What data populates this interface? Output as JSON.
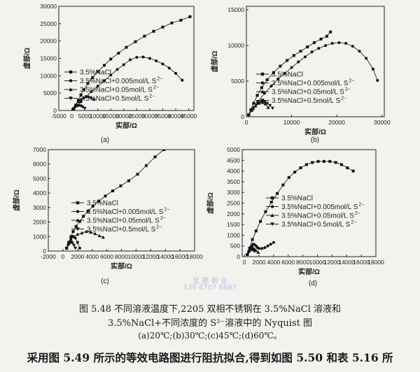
{
  "chart_data": [
    {
      "type": "scatter",
      "panel_label": "(a)",
      "xlabel": "实部/Ω",
      "ylabel": "虚部/Ω",
      "xlim": [
        -5000,
        47000
      ],
      "ylim": [
        0,
        30000
      ],
      "xticks": [
        -5000,
        0,
        5000,
        10000,
        15000,
        20000,
        25000,
        30000,
        35000,
        40000,
        45000
      ],
      "yticks": [
        0,
        5000,
        10000,
        15000,
        20000,
        25000,
        30000
      ],
      "legend": "center-left",
      "series": [
        {
          "name": "3.5%NaCl",
          "marker": "square",
          "legend_name": "3.5%NaCl",
          "x": [
            700,
            1500,
            2500,
            3500,
            4700,
            6200,
            8000,
            10000,
            12500,
            15000,
            18000,
            21000,
            24500,
            28000,
            31500,
            35000,
            38500,
            42000,
            45500
          ],
          "y": [
            500,
            1500,
            3000,
            4500,
            6000,
            7800,
            9500,
            11200,
            13000,
            14800,
            16500,
            18200,
            19800,
            21400,
            22800,
            24000,
            25200,
            26000,
            27000
          ]
        },
        {
          "name": "3.5%NaCl+0.005mol/L S2-",
          "marker": "circle",
          "legend_name": "3.5%NaCl+0.005mol/L S",
          "x": [
            700,
            2000,
            3500,
            5500,
            7500,
            10000,
            12500,
            15000,
            17500,
            20000,
            22500,
            25000,
            27500,
            30000,
            32500,
            35000,
            37500,
            40000,
            42500
          ],
          "y": [
            300,
            1400,
            2500,
            4000,
            5400,
            7000,
            8600,
            10200,
            11800,
            13200,
            14600,
            15300,
            15400,
            15000,
            14300,
            13400,
            12200,
            10700,
            8700
          ]
        },
        {
          "name": "3.5%NaCl+0.05mol/L S2-",
          "marker": "triangle-up",
          "legend_name": "3.5%NaCl+0.05mol/L S",
          "x": [
            600,
            1500,
            2500,
            3500,
            4500,
            5500,
            6500,
            7500,
            8500
          ],
          "y": [
            500,
            1600,
            2500,
            3200,
            3700,
            4000,
            4000,
            3700,
            3200
          ]
        },
        {
          "name": "3.5%NaCl+0.5mol/L S2-",
          "marker": "triangle-down",
          "legend_name": "3.5%NaCl+0.5mol/L S",
          "x": [
            600,
            1200,
            2000,
            2800,
            3500,
            4200,
            5000
          ],
          "y": [
            300,
            800,
            1200,
            1400,
            1300,
            1000,
            600
          ]
        }
      ]
    },
    {
      "type": "scatter",
      "panel_label": "(b)",
      "xlabel": "实部/Ω",
      "ylabel": "虚部/Ω",
      "xlim": [
        0,
        30500
      ],
      "ylim": [
        0,
        15500
      ],
      "xticks": [
        0,
        10000,
        20000,
        30000
      ],
      "yticks": [
        0,
        5000,
        10000,
        15000
      ],
      "legend": "center-left",
      "series": [
        {
          "name": "3.5%NaCl",
          "marker": "square",
          "legend_name": "3.5%NaCl",
          "x": [
            500,
            1000,
            1600,
            2400,
            3400,
            4600,
            6000,
            7500,
            9000,
            10500,
            12000,
            13500,
            15000,
            16500,
            17800,
            18600
          ],
          "y": [
            300,
            1000,
            1900,
            3000,
            4100,
            5200,
            6200,
            7100,
            7900,
            8600,
            9200,
            9800,
            10400,
            10900,
            11300,
            11900
          ]
        },
        {
          "name": "3.5%NaCl+0.005mol/L S2-",
          "marker": "circle",
          "legend_name": "3.5%NaCl+0.005mol/L S",
          "x": [
            500,
            1500,
            2500,
            4000,
            5500,
            7000,
            8500,
            10000,
            11500,
            13000,
            14500,
            16000,
            17500,
            19000,
            20500,
            22000,
            23500,
            25000,
            26500,
            28000,
            29000
          ],
          "y": [
            300,
            1100,
            2100,
            3300,
            4300,
            5300,
            6100,
            6900,
            7700,
            8400,
            9100,
            9600,
            10000,
            10300,
            10400,
            10300,
            9900,
            9200,
            8200,
            6700,
            5100
          ]
        },
        {
          "name": "3.5%NaCl+0.05mol/L S2-",
          "marker": "triangle-up",
          "legend_name": "3.5%NaCl+0.05mol/L S",
          "x": [
            500,
            1200,
            2000,
            2800,
            3600,
            4200,
            4800
          ],
          "y": [
            300,
            900,
            1500,
            1900,
            2000,
            1800,
            1300
          ]
        },
        {
          "name": "3.5%NaCl+0.5mol/L S2-",
          "marker": "triangle-down",
          "legend_name": "3.5%NaCl+0.5mol/L S",
          "x": [
            500,
            1000,
            1600,
            2200,
            2800,
            3400,
            4000,
            4600,
            5200,
            5800
          ],
          "y": [
            200,
            800,
            1300,
            1700,
            2000,
            2100,
            2100,
            1900,
            1600,
            1200
          ]
        }
      ]
    },
    {
      "type": "scatter",
      "panel_label": "(c)",
      "xlabel": "实部/Ω",
      "ylabel": "虚部/Ω",
      "xlim": [
        -2000,
        18000
      ],
      "ylim": [
        0,
        7000
      ],
      "xticks": [
        -2000,
        0,
        2000,
        4000,
        6000,
        8000,
        10000,
        12000,
        14000,
        16000,
        18000
      ],
      "yticks": [
        0,
        1000,
        2000,
        3000,
        4000,
        5000,
        6000,
        7000
      ],
      "legend": "center-left",
      "series": [
        {
          "name": "3.5%NaCl",
          "marker": "square",
          "legend_name": "3.5%NaCl",
          "x": [
            500,
            800,
            1100,
            1400,
            1800,
            2300,
            2800,
            3400,
            4100,
            4900,
            5800,
            6800,
            7900,
            9000,
            10200,
            11400,
            12600,
            13800
          ],
          "y": [
            200,
            600,
            1000,
            1350,
            1700,
            2050,
            2400,
            2750,
            3100,
            3450,
            3800,
            4150,
            4500,
            4850,
            5300,
            5900,
            6500,
            7000
          ]
        },
        {
          "name": "3.5%NaCl+0.005mol/L S2-",
          "marker": "circle",
          "legend_name": "3.5%NaCl+0.005mol/L S",
          "x": [
            500,
            800,
            1100,
            1400,
            1700,
            2000,
            2300
          ],
          "y": [
            200,
            600,
            900,
            1000,
            900,
            600,
            200
          ]
        },
        {
          "name": "3.5%NaCl+0.05mol/L S2-",
          "marker": "triangle-up",
          "legend_name": "3.5%NaCl+0.05mol/L S",
          "x": [
            500,
            800,
            1100,
            1500,
            2000,
            2600,
            3200,
            3800,
            4400,
            5000,
            5500
          ],
          "y": [
            200,
            500,
            800,
            1000,
            1150,
            1250,
            1350,
            1300,
            1200,
            1050,
            950
          ]
        },
        {
          "name": "3.5%NaCl+0.5mol/L S2-",
          "marker": "triangle-down",
          "legend_name": "3.5%NaCl+0.5mol/L S",
          "x": [
            500,
            700,
            900,
            1100,
            1300,
            1500,
            1700
          ],
          "y": [
            200,
            400,
            550,
            600,
            550,
            400,
            200
          ]
        }
      ]
    },
    {
      "type": "scatter",
      "panel_label": "(d)",
      "xlabel": "实部/Ω",
      "ylabel": "虚部/Ω",
      "xlim": [
        -300,
        18000
      ],
      "ylim": [
        0,
        5000
      ],
      "xticks": [
        0,
        2000,
        4000,
        6000,
        8000,
        10000,
        12000,
        14000,
        16000,
        18000
      ],
      "yticks": [
        0,
        500,
        1000,
        1500,
        2000,
        2500,
        3000,
        3500,
        4000,
        4500,
        5000
      ],
      "legend": "center-left",
      "series": [
        {
          "name": "3.5%NaCl",
          "marker": "square",
          "legend_name": "3.5%NaCl",
          "x": [
            400,
            700,
            1100,
            1600,
            2200,
            2900,
            3700,
            4500,
            5300,
            6100,
            6900,
            7700,
            8500,
            9300,
            10100,
            10900,
            11700,
            12500,
            13300,
            14100,
            14900
          ],
          "y": [
            100,
            400,
            800,
            1200,
            1650,
            2100,
            2550,
            2950,
            3350,
            3700,
            3950,
            4150,
            4300,
            4400,
            4450,
            4450,
            4450,
            4400,
            4300,
            4150,
            4000
          ]
        },
        {
          "name": "3.5%NaCl+0.005mol/L S2-",
          "marker": "circle",
          "legend_name": "3.5%NaCl+0.005mol/L S",
          "x": [
            400,
            600,
            800,
            1000,
            1200,
            1400,
            1600,
            1800,
            2000,
            2400,
            2800,
            3200,
            3600,
            4000
          ],
          "y": [
            100,
            250,
            400,
            500,
            580,
            560,
            500,
            420,
            380,
            380,
            420,
            500,
            580,
            660
          ]
        },
        {
          "name": "3.5%NaCl+0.05mol/L S2-",
          "marker": "triangle-up",
          "legend_name": "3.5%NaCl+0.05mol/L S",
          "x": [
            400,
            600,
            800,
            1000,
            1200,
            1400,
            1600,
            1900
          ],
          "y": [
            100,
            250,
            350,
            420,
            400,
            350,
            280,
            200
          ]
        },
        {
          "name": "3.5%NaCl+0.5mol/L S2-",
          "marker": "triangle-down",
          "legend_name": "3.5%NaCl+0.5mol/L S",
          "x": [
            400,
            600,
            800,
            1000,
            1200,
            1400
          ],
          "y": [
            100,
            200,
            300,
            320,
            300,
            250
          ]
        }
      ]
    }
  ],
  "watermark": {
    "line1": "至 德 钢 业",
    "line2": "139 6707 6667"
  },
  "caption": {
    "line1": "图 5.48   不同溶液温度下,2205 双相不锈钢在 3.5%NaCl 溶液和",
    "line2": "3.5%NaCl+不同浓度的 S²⁻溶液中的 Nyquist 图",
    "line3": "(a)20℃;(b)30℃;(c)45℃;(d)60℃。"
  },
  "body_text": "采用图 5.49 所示的等效电路图进行阻抗拟合,得到如图 5.50 和表 5.16 所"
}
